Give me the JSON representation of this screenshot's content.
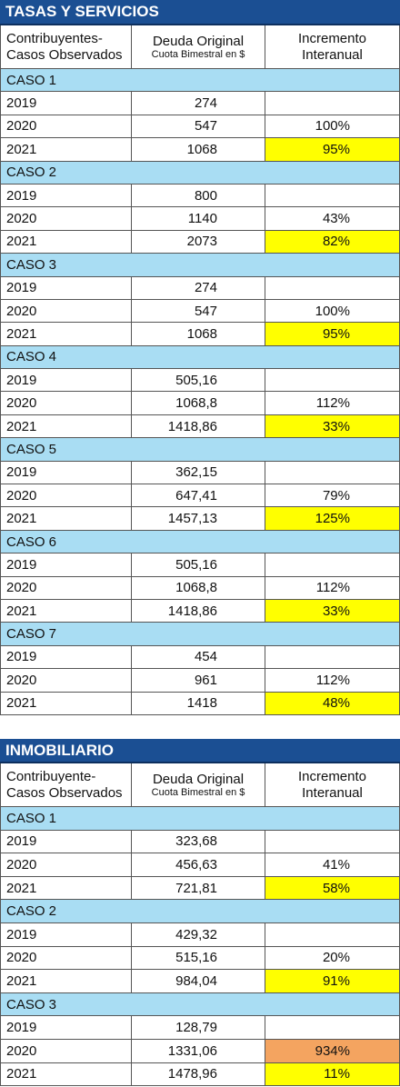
{
  "tables": [
    {
      "title": "TASAS Y SERVICIOS",
      "header": {
        "col1": [
          "Contribuyentes-",
          "Casos Observados"
        ],
        "col2": [
          "Deuda Original",
          "Cuota Bimestral en $"
        ],
        "col3": [
          "Incremento",
          "Interanual"
        ]
      },
      "cases": [
        {
          "label": "CASO 1",
          "rows": [
            {
              "year": "2019",
              "value": "274"
            },
            {
              "year": "2020",
              "value": "547",
              "increment": "100%"
            },
            {
              "year": "2021",
              "value": "1068",
              "increment": "95%",
              "highlight": "#ffff00"
            }
          ]
        },
        {
          "label": "CASO 2",
          "rows": [
            {
              "year": "2019",
              "value": "800"
            },
            {
              "year": "2020",
              "value": "1140",
              "increment": "43%"
            },
            {
              "year": "2021",
              "value": "2073",
              "increment": "82%",
              "highlight": "#ffff00"
            }
          ]
        },
        {
          "label": "CASO 3",
          "rows": [
            {
              "year": "2019",
              "value": "274"
            },
            {
              "year": "2020",
              "value": "547",
              "increment": "100%"
            },
            {
              "year": "2021",
              "value": "1068",
              "increment": "95%",
              "highlight": "#ffff00"
            }
          ]
        },
        {
          "label": "CASO 4",
          "rows": [
            {
              "year": "2019",
              "value": "505,16"
            },
            {
              "year": "2020",
              "value": "1068,8",
              "increment": "112%"
            },
            {
              "year": "2021",
              "value": "1418,86",
              "increment": "33%",
              "highlight": "#ffff00"
            }
          ]
        },
        {
          "label": "CASO 5",
          "rows": [
            {
              "year": "2019",
              "value": "362,15"
            },
            {
              "year": "2020",
              "value": "647,41",
              "increment": "79%"
            },
            {
              "year": "2021",
              "value": "1457,13",
              "increment": "125%",
              "highlight": "#ffff00"
            }
          ]
        },
        {
          "label": "CASO 6",
          "rows": [
            {
              "year": "2019",
              "value": "505,16"
            },
            {
              "year": "2020",
              "value": "1068,8",
              "increment": "112%"
            },
            {
              "year": "2021",
              "value": "1418,86",
              "increment": "33%",
              "highlight": "#ffff00"
            }
          ]
        },
        {
          "label": "CASO 7",
          "rows": [
            {
              "year": "2019",
              "value": "454"
            },
            {
              "year": "2020",
              "value": "961",
              "increment": "112%"
            },
            {
              "year": "2021",
              "value": "1418",
              "increment": "48%",
              "highlight": "#ffff00"
            }
          ]
        }
      ]
    },
    {
      "title": "INMOBILIARIO",
      "header": {
        "col1": [
          "Contribuyente-",
          "Casos Observados"
        ],
        "col2": [
          "Deuda Original",
          "Cuota Bimestral en $"
        ],
        "col3": [
          "Incremento",
          "Interanual"
        ]
      },
      "cases": [
        {
          "label": "CASO 1",
          "rows": [
            {
              "year": "2019",
              "value": "323,68"
            },
            {
              "year": "2020",
              "value": "456,63",
              "increment": "41%"
            },
            {
              "year": "2021",
              "value": "721,81",
              "increment": "58%",
              "highlight": "#ffff00"
            }
          ]
        },
        {
          "label": "CASO 2",
          "rows": [
            {
              "year": "2019",
              "value": "429,32"
            },
            {
              "year": "2020",
              "value": "515,16",
              "increment": "20%"
            },
            {
              "year": "2021",
              "value": "984,04",
              "increment": "91%",
              "highlight": "#ffff00"
            }
          ]
        },
        {
          "label": "CASO 3",
          "rows": [
            {
              "year": "2019",
              "value": "128,79"
            },
            {
              "year": "2020",
              "value": "1331,06",
              "increment": "934%",
              "highlight": "#f4a460"
            },
            {
              "year": "2021",
              "value": "1478,96",
              "increment": "11%",
              "highlight": "#ffff00"
            }
          ]
        }
      ]
    }
  ]
}
